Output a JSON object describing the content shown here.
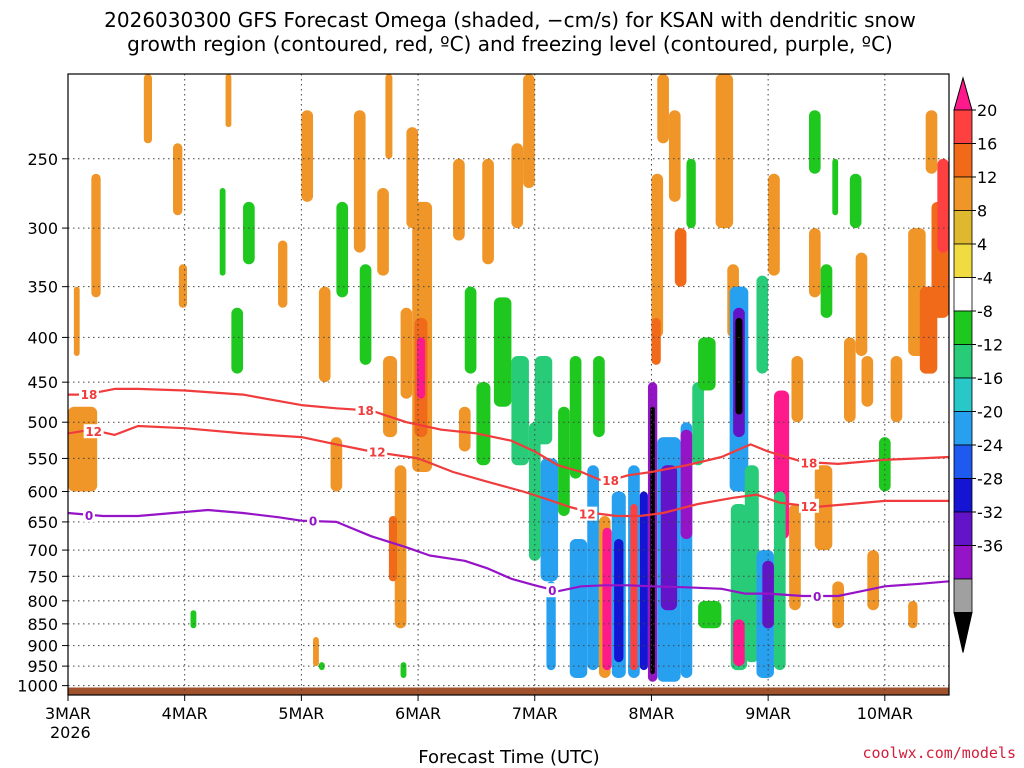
{
  "chart_data": {
    "type": "heatmap",
    "title_line1": "2026030300 GFS Forecast Omega (shaded, −cm/s) for KSAN with dendritic snow",
    "title_line2": "growth region (contoured, red, ºC) and freezing level (contoured, purple, ºC)",
    "xlabel": "Forecast Time (UTC)",
    "credit": "coolwx.com/models",
    "x_ticks": [
      {
        "day": 3,
        "label": "3MAR"
      },
      {
        "day": 4,
        "label": "4MAR"
      },
      {
        "day": 5,
        "label": "5MAR"
      },
      {
        "day": 6,
        "label": "6MAR"
      },
      {
        "day": 7,
        "label": "7MAR"
      },
      {
        "day": 8,
        "label": "8MAR"
      },
      {
        "day": 9,
        "label": "9MAR"
      },
      {
        "day": 10,
        "label": "10MAR"
      }
    ],
    "x_year_label": "2026",
    "xlim": [
      3.0,
      10.55
    ],
    "y_ticks": [
      250,
      300,
      350,
      400,
      450,
      500,
      550,
      600,
      650,
      700,
      750,
      800,
      850,
      900,
      950,
      1000
    ],
    "ylim_hpa": [
      200,
      1025
    ],
    "colorbar": {
      "labels": [
        "20",
        "16",
        "12",
        "8",
        "4",
        "-4",
        "-8",
        "-12",
        "-16",
        "-20",
        "-24",
        "-28",
        "-32",
        "-36"
      ],
      "colors": [
        "#ff1a8c",
        "#ff4040",
        "#f06a1a",
        "#f09628",
        "#e0b830",
        "#f0dc40",
        "#ffffff",
        "#1ec81e",
        "#28cc78",
        "#28c8c8",
        "#28a0f0",
        "#1e5af0",
        "#1414d2",
        "#6414c8",
        "#9614c8",
        "#a0a0a0",
        "#000000"
      ]
    },
    "series": [
      {
        "name": "-18",
        "color": "#f03c3c",
        "x": [
          3.0,
          3.15,
          3.4,
          3.6,
          4.0,
          4.5,
          5.0,
          5.3,
          5.6,
          5.9,
          6.2,
          6.5,
          6.8,
          7.0,
          7.2,
          7.4,
          7.6,
          7.8,
          8.0,
          8.3,
          8.6,
          8.85,
          9.0,
          9.3,
          9.6,
          9.8,
          10.0,
          10.3,
          10.55
        ],
        "y": [
          465,
          465,
          458,
          458,
          460,
          465,
          478,
          482,
          485,
          500,
          510,
          515,
          525,
          540,
          560,
          570,
          585,
          575,
          570,
          560,
          548,
          530,
          540,
          555,
          558,
          555,
          552,
          550,
          548
        ]
      },
      {
        "name": "-12",
        "color": "#f03c3c",
        "x": [
          3.0,
          3.2,
          3.4,
          3.6,
          4.0,
          4.5,
          5.0,
          5.3,
          5.6,
          6.0,
          6.3,
          6.6,
          6.9,
          7.1,
          7.3,
          7.5,
          7.7,
          7.9,
          8.1,
          8.4,
          8.7,
          8.9,
          9.1,
          9.4,
          9.7,
          10.0,
          10.3,
          10.55
        ],
        "y": [
          515,
          510,
          517,
          505,
          508,
          515,
          520,
          530,
          540,
          550,
          570,
          585,
          600,
          612,
          625,
          635,
          640,
          640,
          635,
          620,
          610,
          605,
          618,
          625,
          620,
          615,
          615,
          615
        ]
      },
      {
        "name": "0",
        "color": "#9614c8",
        "x": [
          3.0,
          3.3,
          3.6,
          3.9,
          4.2,
          4.5,
          4.8,
          5.0,
          5.3,
          5.6,
          5.9,
          6.1,
          6.4,
          6.6,
          6.8,
          7.0,
          7.2,
          7.4,
          7.6,
          7.8,
          8.0,
          8.3,
          8.6,
          8.8,
          9.0,
          9.3,
          9.6,
          9.8,
          10.0,
          10.3,
          10.55
        ],
        "y": [
          635,
          640,
          640,
          635,
          630,
          635,
          642,
          648,
          650,
          675,
          695,
          710,
          720,
          735,
          755,
          768,
          780,
          770,
          768,
          768,
          770,
          772,
          775,
          785,
          785,
          790,
          790,
          780,
          770,
          765,
          760
        ]
      }
    ],
    "contour_labels": [
      {
        "text": "18",
        "series": "-18",
        "x": 3.18,
        "y": 464
      },
      {
        "text": "18",
        "series": "-18",
        "x": 5.55,
        "y": 484
      },
      {
        "text": "18",
        "series": "-18",
        "x": 7.65,
        "y": 582
      },
      {
        "text": "18",
        "series": "-18",
        "x": 9.35,
        "y": 556
      },
      {
        "text": "12",
        "series": "-12",
        "x": 3.22,
        "y": 512
      },
      {
        "text": "12",
        "series": "-12",
        "x": 5.65,
        "y": 540
      },
      {
        "text": "12",
        "series": "-12",
        "x": 7.45,
        "y": 636
      },
      {
        "text": "12",
        "series": "-12",
        "x": 9.35,
        "y": 623
      },
      {
        "text": "0",
        "series": "0",
        "x": 3.18,
        "y": 638
      },
      {
        "text": "0",
        "series": "0",
        "x": 5.1,
        "y": 648
      },
      {
        "text": "0",
        "series": "0",
        "x": 7.15,
        "y": 778
      },
      {
        "text": "0",
        "series": "0",
        "x": 9.42,
        "y": 790
      }
    ],
    "shaded_regions": [
      {
        "x0": 3.0,
        "x1": 3.25,
        "p0": 480,
        "p1": 600,
        "v": 6
      },
      {
        "x0": 3.2,
        "x1": 3.28,
        "p0": 260,
        "p1": 360,
        "v": 6
      },
      {
        "x0": 3.65,
        "x1": 3.72,
        "p0": 200,
        "p1": 240,
        "v": 6
      },
      {
        "x0": 3.95,
        "x1": 4.02,
        "p0": 330,
        "p1": 370,
        "v": 6
      },
      {
        "x0": 3.9,
        "x1": 3.98,
        "p0": 240,
        "p1": 290,
        "v": 6
      },
      {
        "x0": 4.3,
        "x1": 4.35,
        "p0": 270,
        "p1": 340,
        "v": -6
      },
      {
        "x0": 4.5,
        "x1": 4.6,
        "p0": 280,
        "p1": 330,
        "v": -6
      },
      {
        "x0": 4.4,
        "x1": 4.5,
        "p0": 370,
        "p1": 440,
        "v": -6
      },
      {
        "x0": 4.8,
        "x1": 4.88,
        "p0": 310,
        "p1": 370,
        "v": 6
      },
      {
        "x0": 5.0,
        "x1": 5.1,
        "p0": 220,
        "p1": 280,
        "v": 6
      },
      {
        "x0": 5.15,
        "x1": 5.25,
        "p0": 350,
        "p1": 450,
        "v": 6
      },
      {
        "x0": 5.3,
        "x1": 5.4,
        "p0": 280,
        "p1": 360,
        "v": -6
      },
      {
        "x0": 5.25,
        "x1": 5.35,
        "p0": 520,
        "p1": 600,
        "v": 6
      },
      {
        "x0": 5.45,
        "x1": 5.55,
        "p0": 220,
        "p1": 320,
        "v": 6
      },
      {
        "x0": 5.5,
        "x1": 5.6,
        "p0": 330,
        "p1": 430,
        "v": -6
      },
      {
        "x0": 5.65,
        "x1": 5.75,
        "p0": 270,
        "p1": 340,
        "v": 6
      },
      {
        "x0": 5.7,
        "x1": 5.82,
        "p0": 420,
        "p1": 520,
        "v": 6
      },
      {
        "x0": 5.85,
        "x1": 5.95,
        "p0": 370,
        "p1": 470,
        "v": 6
      },
      {
        "x0": 5.8,
        "x1": 5.9,
        "p0": 560,
        "p1": 860,
        "v": 6
      },
      {
        "x0": 5.75,
        "x1": 5.82,
        "p0": 640,
        "p1": 760,
        "v": 10
      },
      {
        "x0": 5.9,
        "x1": 6.0,
        "p0": 230,
        "p1": 300,
        "v": 6
      },
      {
        "x0": 5.95,
        "x1": 6.12,
        "p0": 280,
        "p1": 570,
        "v": 6
      },
      {
        "x0": 5.97,
        "x1": 6.08,
        "p0": 380,
        "p1": 520,
        "v": 10
      },
      {
        "x0": 5.99,
        "x1": 6.06,
        "p0": 400,
        "p1": 470,
        "v": 18
      },
      {
        "x0": 6.3,
        "x1": 6.4,
        "p0": 250,
        "p1": 310,
        "v": 6
      },
      {
        "x0": 6.35,
        "x1": 6.45,
        "p0": 480,
        "p1": 540,
        "v": 6
      },
      {
        "x0": 6.4,
        "x1": 6.5,
        "p0": 350,
        "p1": 440,
        "v": -6
      },
      {
        "x0": 6.5,
        "x1": 6.62,
        "p0": 450,
        "p1": 560,
        "v": -6
      },
      {
        "x0": 6.55,
        "x1": 6.65,
        "p0": 250,
        "p1": 330,
        "v": 6
      },
      {
        "x0": 6.65,
        "x1": 6.8,
        "p0": 360,
        "p1": 480,
        "v": -6
      },
      {
        "x0": 6.8,
        "x1": 6.9,
        "p0": 240,
        "p1": 300,
        "v": 6
      },
      {
        "x0": 6.8,
        "x1": 6.95,
        "p0": 420,
        "p1": 560,
        "v": -10
      },
      {
        "x0": 6.9,
        "x1": 7.0,
        "p0": 200,
        "p1": 270,
        "v": 6
      },
      {
        "x0": 6.95,
        "x1": 7.05,
        "p0": 500,
        "p1": 720,
        "v": -10
      },
      {
        "x0": 7.0,
        "x1": 7.15,
        "p0": 420,
        "p1": 530,
        "v": -8
      },
      {
        "x0": 7.05,
        "x1": 7.2,
        "p0": 550,
        "p1": 760,
        "v": -14
      },
      {
        "x0": 7.1,
        "x1": 7.18,
        "p0": 760,
        "p1": 960,
        "v": -14
      },
      {
        "x0": 7.2,
        "x1": 7.3,
        "p0": 480,
        "p1": 640,
        "v": -6
      },
      {
        "x0": 7.3,
        "x1": 7.4,
        "p0": 420,
        "p1": 580,
        "v": -6
      },
      {
        "x0": 7.3,
        "x1": 7.45,
        "p0": 680,
        "p1": 980,
        "v": -14
      },
      {
        "x0": 7.45,
        "x1": 7.55,
        "p0": 560,
        "p1": 960,
        "v": -12
      },
      {
        "x0": 7.5,
        "x1": 7.6,
        "p0": 420,
        "p1": 520,
        "v": -6
      },
      {
        "x0": 7.55,
        "x1": 7.65,
        "p0": 640,
        "p1": 980,
        "v": 6
      },
      {
        "x0": 7.58,
        "x1": 7.66,
        "p0": 660,
        "p1": 960,
        "v": 18
      },
      {
        "x0": 7.66,
        "x1": 7.78,
        "p0": 600,
        "p1": 980,
        "v": -14
      },
      {
        "x0": 7.68,
        "x1": 7.76,
        "p0": 680,
        "p1": 940,
        "v": -22
      },
      {
        "x0": 7.8,
        "x1": 7.9,
        "p0": 560,
        "p1": 980,
        "v": -14
      },
      {
        "x0": 7.82,
        "x1": 7.88,
        "p0": 620,
        "p1": 960,
        "v": 14
      },
      {
        "x0": 7.9,
        "x1": 7.97,
        "p0": 600,
        "p1": 960,
        "v": -22
      },
      {
        "x0": 7.97,
        "x1": 8.05,
        "p0": 450,
        "p1": 990,
        "v": -30
      },
      {
        "x0": 7.99,
        "x1": 8.03,
        "p0": 480,
        "p1": 970,
        "v": -40
      },
      {
        "x0": 8.05,
        "x1": 8.25,
        "p0": 520,
        "p1": 990,
        "v": -14
      },
      {
        "x0": 8.08,
        "x1": 8.22,
        "p0": 560,
        "p1": 820,
        "v": -26
      },
      {
        "x0": 8.25,
        "x1": 8.35,
        "p0": 500,
        "p1": 980,
        "v": -14
      },
      {
        "x0": 8.25,
        "x1": 8.35,
        "p0": 510,
        "p1": 680,
        "v": -30
      },
      {
        "x0": 8.35,
        "x1": 8.45,
        "p0": 450,
        "p1": 560,
        "v": -8
      },
      {
        "x0": 8.4,
        "x1": 8.6,
        "p0": 800,
        "p1": 860,
        "v": -6
      },
      {
        "x0": 8.0,
        "x1": 8.1,
        "p0": 260,
        "p1": 400,
        "v": 6
      },
      {
        "x0": 8.0,
        "x1": 8.08,
        "p0": 380,
        "p1": 430,
        "v": 10
      },
      {
        "x0": 8.05,
        "x1": 8.15,
        "p0": 200,
        "p1": 240,
        "v": 6
      },
      {
        "x0": 8.15,
        "x1": 8.25,
        "p0": 220,
        "p1": 280,
        "v": 6
      },
      {
        "x0": 8.2,
        "x1": 8.3,
        "p0": 300,
        "p1": 350,
        "v": 10
      },
      {
        "x0": 8.3,
        "x1": 8.38,
        "p0": 250,
        "p1": 300,
        "v": -6
      },
      {
        "x0": 8.4,
        "x1": 8.55,
        "p0": 400,
        "p1": 460,
        "v": -6
      },
      {
        "x0": 8.55,
        "x1": 8.7,
        "p0": 200,
        "p1": 300,
        "v": 6
      },
      {
        "x0": 8.65,
        "x1": 8.75,
        "p0": 330,
        "p1": 400,
        "v": 6
      },
      {
        "x0": 8.67,
        "x1": 8.83,
        "p0": 350,
        "p1": 600,
        "v": -14
      },
      {
        "x0": 8.7,
        "x1": 8.8,
        "p0": 370,
        "p1": 520,
        "v": -26
      },
      {
        "x0": 8.72,
        "x1": 8.78,
        "p0": 380,
        "p1": 490,
        "v": -40
      },
      {
        "x0": 8.68,
        "x1": 8.82,
        "p0": 620,
        "p1": 960,
        "v": -10
      },
      {
        "x0": 8.7,
        "x1": 8.8,
        "p0": 840,
        "p1": 950,
        "v": 18
      },
      {
        "x0": 8.8,
        "x1": 8.92,
        "p0": 560,
        "p1": 940,
        "v": -10
      },
      {
        "x0": 8.9,
        "x1": 9.0,
        "p0": 340,
        "p1": 440,
        "v": -8
      },
      {
        "x0": 8.9,
        "x1": 9.05,
        "p0": 700,
        "p1": 980,
        "v": -14
      },
      {
        "x0": 8.95,
        "x1": 9.05,
        "p0": 720,
        "p1": 860,
        "v": -26
      },
      {
        "x0": 9.05,
        "x1": 9.18,
        "p0": 460,
        "p1": 680,
        "v": 18
      },
      {
        "x0": 9.05,
        "x1": 9.15,
        "p0": 600,
        "p1": 960,
        "v": -10
      },
      {
        "x0": 9.0,
        "x1": 9.1,
        "p0": 260,
        "p1": 340,
        "v": 6
      },
      {
        "x0": 9.18,
        "x1": 9.28,
        "p0": 620,
        "p1": 820,
        "v": 6
      },
      {
        "x0": 9.2,
        "x1": 9.3,
        "p0": 420,
        "p1": 500,
        "v": 6
      },
      {
        "x0": 9.35,
        "x1": 9.45,
        "p0": 300,
        "p1": 360,
        "v": 6
      },
      {
        "x0": 9.4,
        "x1": 9.55,
        "p0": 560,
        "p1": 700,
        "v": 6
      },
      {
        "x0": 9.45,
        "x1": 9.55,
        "p0": 330,
        "p1": 380,
        "v": -6
      },
      {
        "x0": 9.35,
        "x1": 9.45,
        "p0": 220,
        "p1": 260,
        "v": -6
      },
      {
        "x0": 9.55,
        "x1": 9.6,
        "p0": 250,
        "p1": 290,
        "v": -6
      },
      {
        "x0": 9.55,
        "x1": 9.65,
        "p0": 760,
        "p1": 860,
        "v": 6
      },
      {
        "x0": 9.65,
        "x1": 9.75,
        "p0": 400,
        "p1": 500,
        "v": 6
      },
      {
        "x0": 9.7,
        "x1": 9.8,
        "p0": 260,
        "p1": 300,
        "v": -6
      },
      {
        "x0": 9.75,
        "x1": 9.85,
        "p0": 320,
        "p1": 420,
        "v": 6
      },
      {
        "x0": 9.8,
        "x1": 9.9,
        "p0": 420,
        "p1": 480,
        "v": 6
      },
      {
        "x0": 9.85,
        "x1": 9.95,
        "p0": 700,
        "p1": 820,
        "v": 6
      },
      {
        "x0": 9.95,
        "x1": 10.05,
        "p0": 520,
        "p1": 600,
        "v": -6
      },
      {
        "x0": 10.05,
        "x1": 10.15,
        "p0": 420,
        "p1": 500,
        "v": 6
      },
      {
        "x0": 10.2,
        "x1": 10.35,
        "p0": 300,
        "p1": 420,
        "v": 6
      },
      {
        "x0": 10.3,
        "x1": 10.45,
        "p0": 350,
        "p1": 440,
        "v": 10
      },
      {
        "x0": 10.35,
        "x1": 10.45,
        "p0": 220,
        "p1": 260,
        "v": 6
      },
      {
        "x0": 10.4,
        "x1": 10.55,
        "p0": 280,
        "p1": 380,
        "v": 10
      },
      {
        "x0": 10.45,
        "x1": 10.55,
        "p0": 250,
        "p1": 320,
        "v": 14
      },
      {
        "x0": 10.2,
        "x1": 10.28,
        "p0": 800,
        "p1": 860,
        "v": 6
      },
      {
        "x0": 3.05,
        "x1": 3.1,
        "p0": 350,
        "p1": 420,
        "v": 6
      },
      {
        "x0": 4.35,
        "x1": 4.4,
        "p0": 200,
        "p1": 230,
        "v": 6
      },
      {
        "x0": 4.05,
        "x1": 4.1,
        "p0": 820,
        "p1": 860,
        "v": -6
      },
      {
        "x0": 5.1,
        "x1": 5.15,
        "p0": 880,
        "p1": 950,
        "v": 6
      },
      {
        "x0": 5.15,
        "x1": 5.2,
        "p0": 940,
        "p1": 960,
        "v": -6
      },
      {
        "x0": 5.85,
        "x1": 5.9,
        "p0": 940,
        "p1": 980,
        "v": -6
      },
      {
        "x0": 5.72,
        "x1": 5.78,
        "p0": 200,
        "p1": 250,
        "v": 6
      }
    ],
    "ground": {
      "p": 1005,
      "color": "#a0522d"
    }
  }
}
